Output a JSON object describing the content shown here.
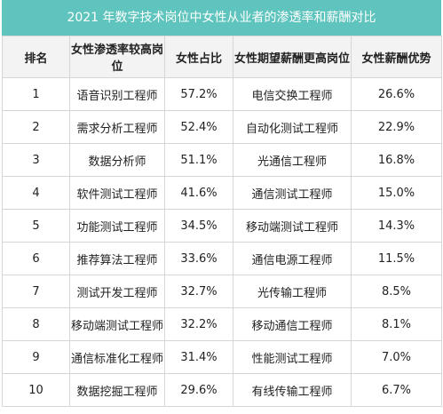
{
  "title": "2021 年数字技术岗位中女性从业者的渗透率和薪酬对比",
  "table": {
    "header": [
      "排名",
      "女性渗透率较高岗位",
      "女性占比",
      "女性期望薪酬更高岗位",
      "女性薪酬优势"
    ],
    "rows": [
      [
        "1",
        "语音识别工程师",
        "57.2%",
        "电信交换工程师",
        "26.6%"
      ],
      [
        "2",
        "需求分析工程师",
        "52.4%",
        "自动化测试工程师",
        "22.9%"
      ],
      [
        "3",
        "数据分析师",
        "51.1%",
        "光通信工程师",
        "16.8%"
      ],
      [
        "4",
        "软件测试工程师",
        "41.6%",
        "通信测试工程师",
        "15.0%"
      ],
      [
        "5",
        "功能测试工程师",
        "34.5%",
        "移动端测试工程师",
        "14.3%"
      ],
      [
        "6",
        "推荐算法工程师",
        "33.6%",
        "通信电源工程师",
        "11.5%"
      ],
      [
        "7",
        "测试开发工程师",
        "32.7%",
        "光传输工程师",
        "8.5%"
      ],
      [
        "8",
        "移动端测试工程师",
        "32.2%",
        "移动通信工程师",
        "8.1%"
      ],
      [
        "9",
        "通信标准化工程师",
        "31.4%",
        "性能测试工程师",
        "7.0%"
      ],
      [
        "10",
        "数据挖掘工程师",
        "29.6%",
        "有线传输工程师",
        "6.7%"
      ]
    ]
  }
}
